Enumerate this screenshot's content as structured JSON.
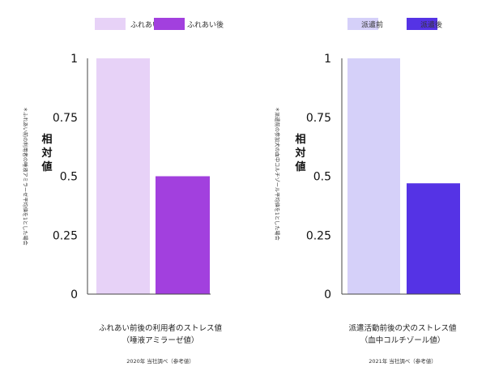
{
  "chart_data": [
    {
      "type": "bar",
      "legend_position": "top",
      "categories": [
        "ふれあい前",
        "ふれあい後"
      ],
      "values": [
        1.0,
        0.5
      ],
      "colors": [
        "#E7D2F7",
        "#A240DE"
      ],
      "ylim": [
        0,
        1
      ],
      "yticks": [
        "0",
        "0.25",
        "0.5",
        "0.75",
        "1"
      ],
      "ylabel": "相対値",
      "side_note": "＊ふれあい前の利用者の唾液アミラーゼ平均値を1とした場合",
      "title": "ふれあい前後の利用者のストレス値",
      "subtitle": "（唾液アミラーゼ値）",
      "source": "2020年 当社調べ（参考値）"
    },
    {
      "type": "bar",
      "legend_position": "top",
      "categories": [
        "派遣前",
        "派遣後"
      ],
      "values": [
        1.0,
        0.47
      ],
      "colors": [
        "#D5D0F9",
        "#5533E5"
      ],
      "ylim": [
        0,
        1
      ],
      "yticks": [
        "0",
        "0.25",
        "0.5",
        "0.75",
        "1"
      ],
      "ylabel": "相対値",
      "side_note": "＊派遣前の参加犬の血中コルチゾール平均値を1とした場合",
      "title": "派遣活動前後の犬のストレス値",
      "subtitle": "（血中コルチゾール値）",
      "source": "2021年 当社調べ（参考値）"
    }
  ]
}
